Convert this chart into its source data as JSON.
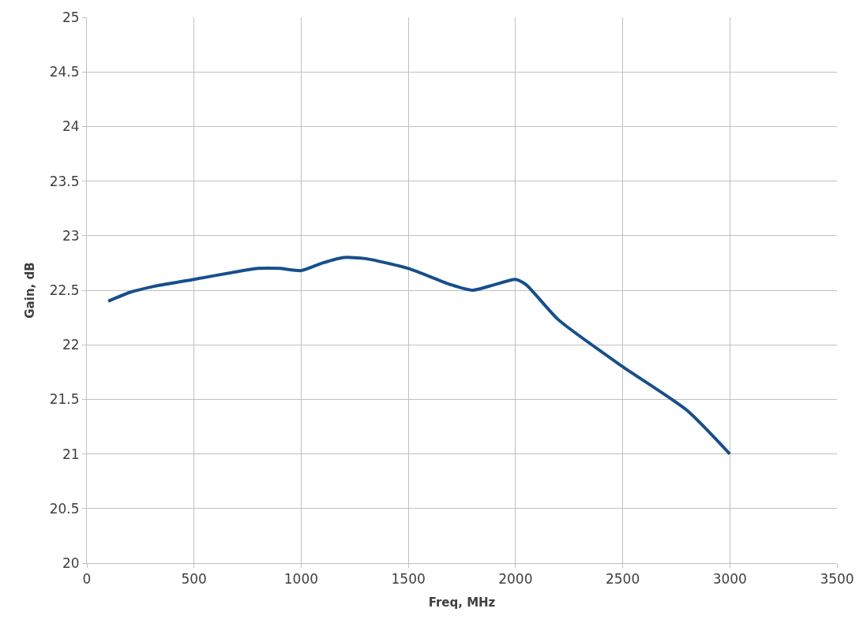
{
  "chart_data": {
    "type": "line",
    "xlabel": "Freq, MHz",
    "ylabel": "Gain, dB",
    "x": [
      100,
      200,
      300,
      500,
      700,
      800,
      900,
      1000,
      1100,
      1200,
      1300,
      1500,
      1700,
      1800,
      1900,
      2000,
      2050,
      2200,
      2500,
      2800,
      3000
    ],
    "series": [
      {
        "color": "#174f8c",
        "values": [
          22.4,
          22.48,
          22.53,
          22.6,
          22.67,
          22.7,
          22.7,
          22.68,
          22.75,
          22.8,
          22.79,
          22.7,
          22.55,
          22.5,
          22.55,
          22.6,
          22.55,
          22.23,
          21.8,
          21.4,
          21.0
        ]
      }
    ],
    "xlim": [
      0,
      3500
    ],
    "xticks": [
      0,
      500,
      1000,
      1500,
      2000,
      2500,
      3000,
      3500
    ],
    "ylim": [
      20,
      25
    ],
    "yticks": [
      20,
      20.5,
      21,
      21.5,
      22,
      22.5,
      23,
      23.5,
      24,
      24.5,
      25
    ],
    "grid": true,
    "marker": "none",
    "line_style": "solid"
  }
}
